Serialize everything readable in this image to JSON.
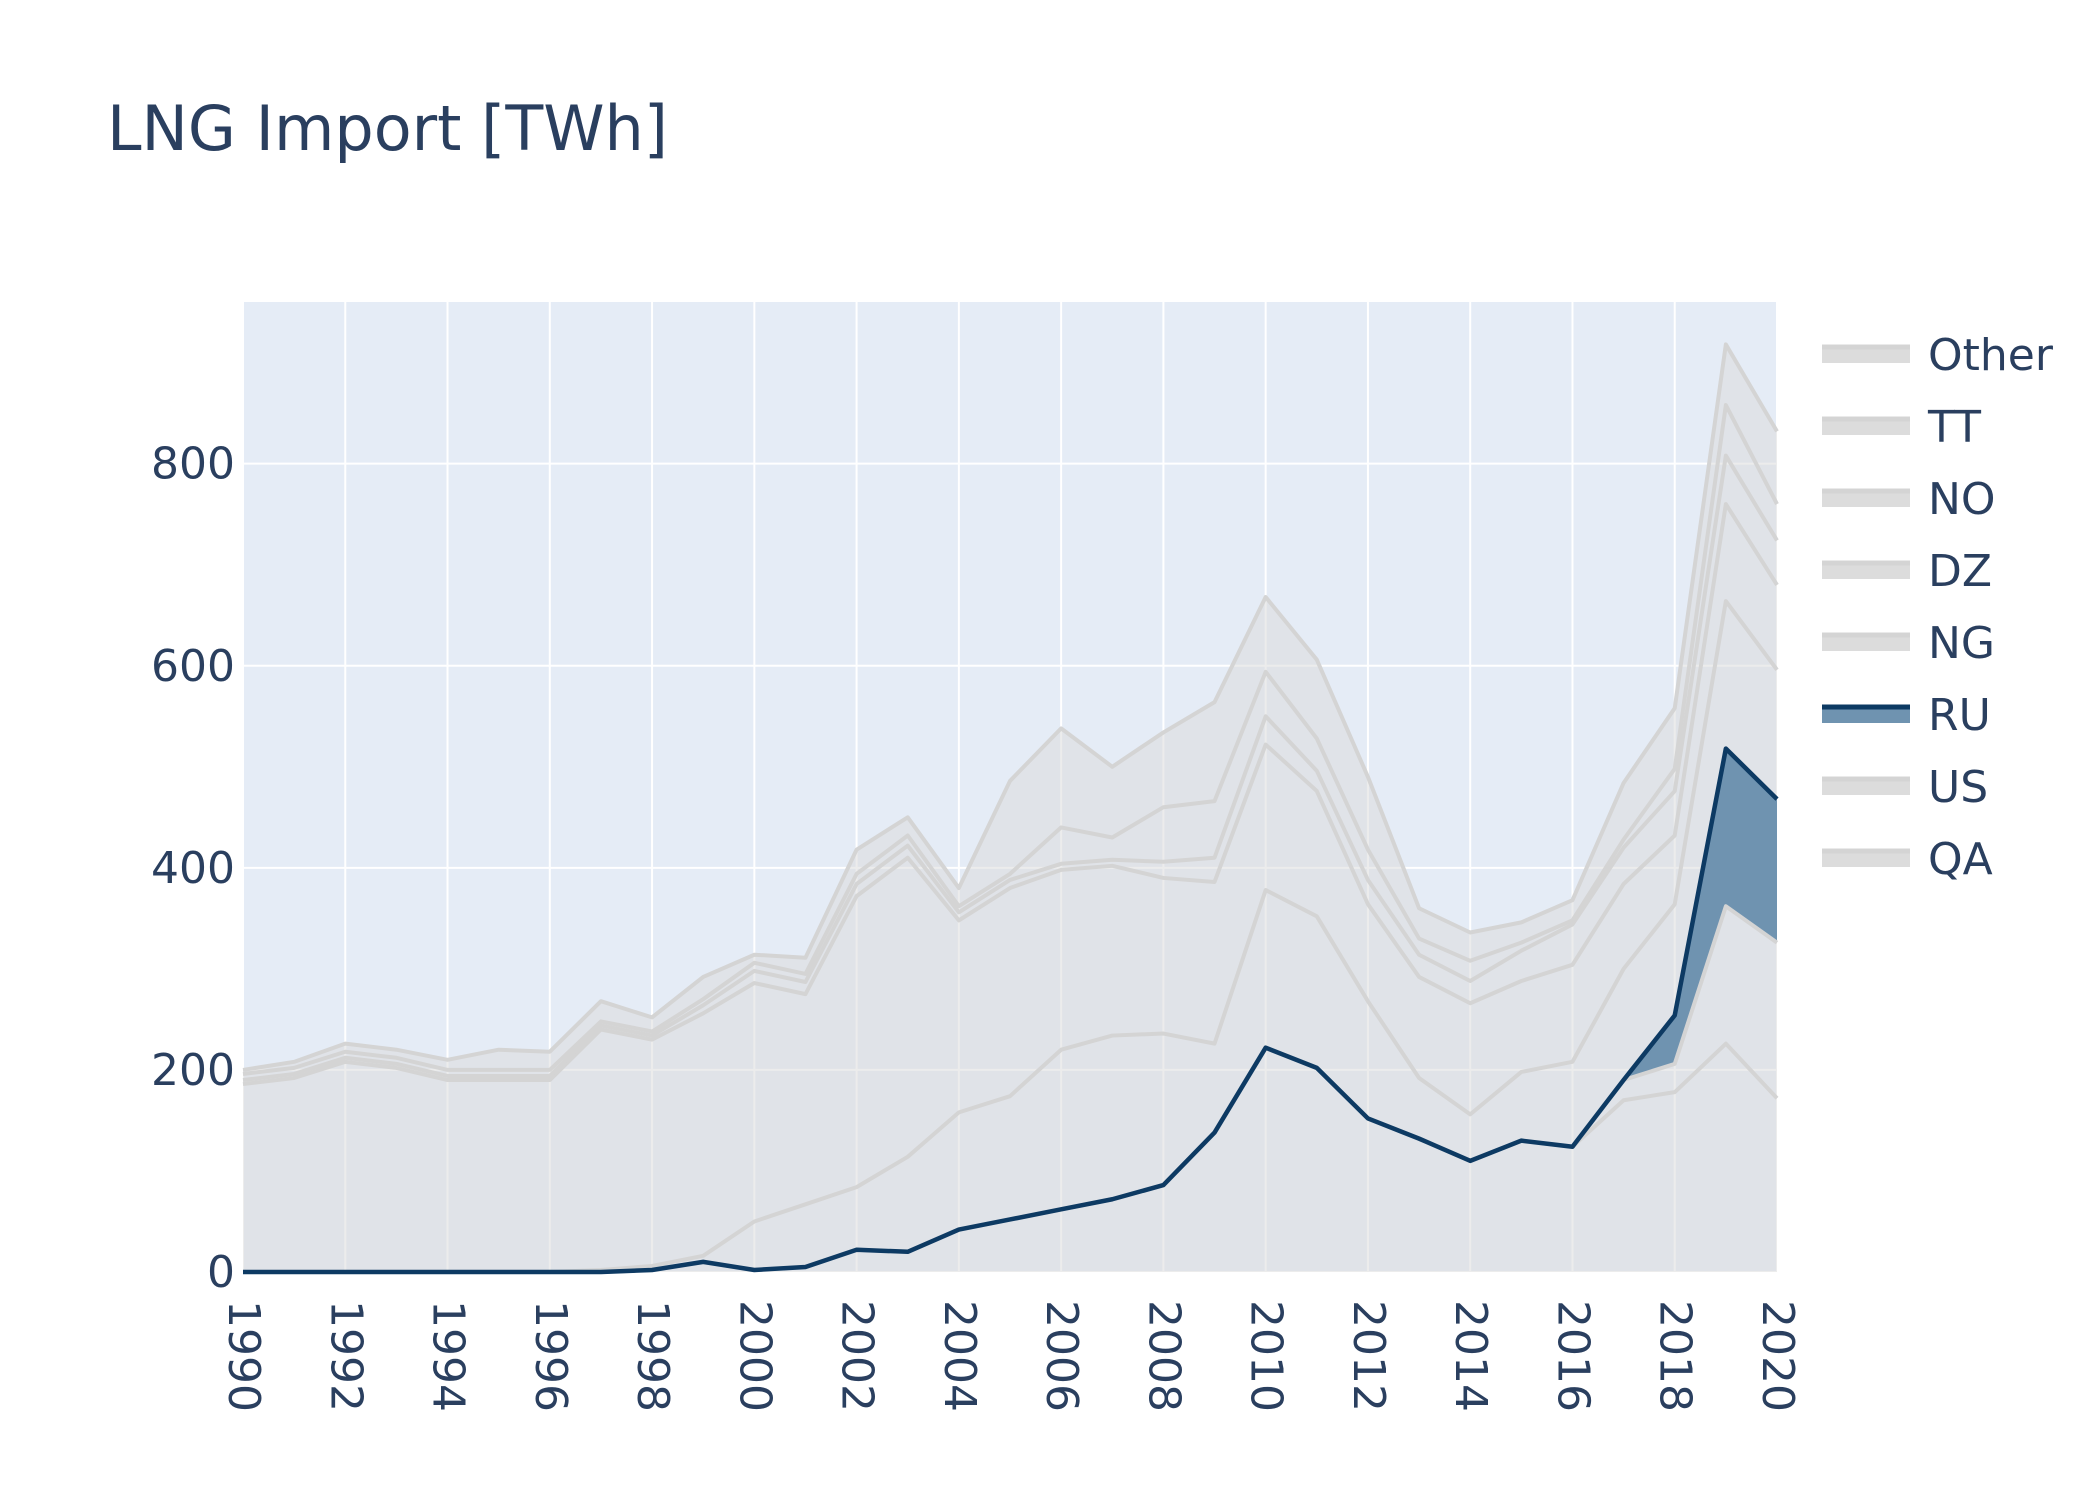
{
  "chart_data": {
    "type": "area",
    "stacked": true,
    "title": "LNG Import [TWh]",
    "xlabel": "",
    "ylabel": "",
    "xlim": [
      1990,
      2020
    ],
    "ylim": [
      0,
      960
    ],
    "x_ticks": [
      1990,
      1992,
      1994,
      1996,
      1998,
      2000,
      2002,
      2004,
      2006,
      2008,
      2010,
      2012,
      2014,
      2016,
      2018,
      2020
    ],
    "y_ticks": [
      0,
      200,
      400,
      600,
      800
    ],
    "grid": true,
    "legend_position": "right",
    "highlighted_series": "RU",
    "colors": {
      "highlight_line": "#0d3a63",
      "highlight_fill": "#6f93b0",
      "muted_line": "#d4d4d4",
      "muted_fill": "#dcdcdc",
      "plot_bg": "#e5ecf6",
      "grid": "#ffffff",
      "text": "#2a3f5f"
    },
    "x": [
      1990,
      1991,
      1992,
      1993,
      1994,
      1995,
      1996,
      1997,
      1998,
      1999,
      2000,
      2001,
      2002,
      2003,
      2004,
      2005,
      2006,
      2007,
      2008,
      2009,
      2010,
      2011,
      2012,
      2013,
      2014,
      2015,
      2016,
      2017,
      2018,
      2019,
      2020
    ],
    "series": [
      {
        "name": "QA",
        "values": [
          0,
          0,
          0,
          0,
          0,
          0,
          0,
          0,
          2,
          10,
          2,
          5,
          22,
          20,
          42,
          52,
          62,
          72,
          86,
          138,
          222,
          202,
          152,
          132,
          110,
          130,
          124,
          170,
          178,
          226,
          172
        ]
      },
      {
        "name": "US",
        "values": [
          0,
          0,
          0,
          0,
          0,
          0,
          0,
          0,
          0,
          0,
          0,
          0,
          0,
          0,
          0,
          0,
          0,
          0,
          0,
          0,
          0,
          0,
          0,
          0,
          0,
          0,
          0,
          20,
          28,
          136,
          154
        ]
      },
      {
        "name": "RU",
        "values": [
          0,
          0,
          0,
          0,
          0,
          0,
          0,
          0,
          0,
          0,
          0,
          0,
          0,
          0,
          0,
          0,
          0,
          0,
          0,
          0,
          0,
          0,
          0,
          0,
          0,
          0,
          0,
          0,
          48,
          156,
          142
        ]
      },
      {
        "name": "NG",
        "values": [
          0,
          0,
          0,
          0,
          0,
          0,
          0,
          2,
          4,
          6,
          48,
          62,
          62,
          94,
          116,
          122,
          158,
          162,
          150,
          88,
          156,
          150,
          116,
          60,
          46,
          68,
          84,
          110,
          110,
          146,
          128
        ]
      },
      {
        "name": "DZ",
        "values": [
          186,
          192,
          208,
          202,
          190,
          190,
          190,
          238,
          224,
          240,
          236,
          208,
          288,
          296,
          190,
          206,
          178,
          168,
          154,
          160,
          144,
          124,
          96,
          100,
          110,
          90,
          96,
          84,
          68,
          96,
          84
        ]
      },
      {
        "name": "NO",
        "values": [
          4,
          4,
          4,
          4,
          4,
          4,
          4,
          4,
          4,
          8,
          12,
          12,
          12,
          12,
          8,
          8,
          6,
          6,
          16,
          24,
          28,
          20,
          24,
          22,
          22,
          30,
          40,
          36,
          44,
          48,
          44
        ]
      },
      {
        "name": "TT",
        "values": [
          6,
          6,
          6,
          6,
          6,
          6,
          6,
          4,
          4,
          6,
          8,
          8,
          10,
          10,
          6,
          6,
          36,
          22,
          54,
          56,
          44,
          32,
          30,
          16,
          20,
          8,
          4,
          8,
          22,
          50,
          36
        ]
      },
      {
        "name": "Other",
        "values": [
          4,
          6,
          8,
          8,
          10,
          20,
          18,
          20,
          14,
          22,
          8,
          16,
          24,
          18,
          18,
          92,
          98,
          70,
          74,
          98,
          74,
          78,
          72,
          30,
          28,
          20,
          20,
          56,
          60,
          60,
          72
        ]
      }
    ]
  }
}
